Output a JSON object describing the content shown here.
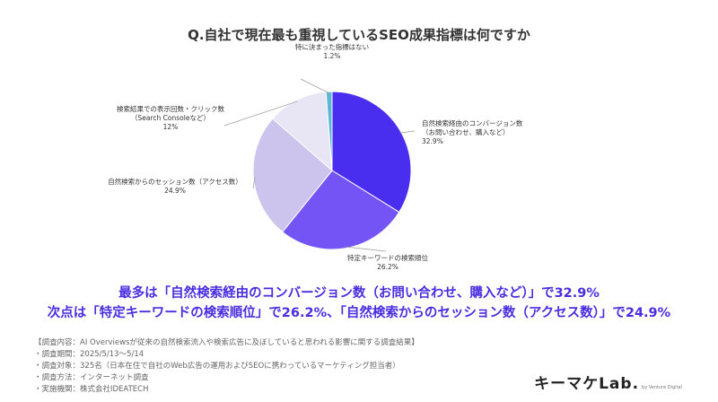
{
  "chart_data": {
    "type": "pie",
    "title": "Q.自社で現在最も重視しているSEO成果指標は何ですか",
    "slices": [
      {
        "label_lines": [
          "自然検索経由のコンバージョン数",
          "（お問い合わせ、購入など）"
        ],
        "value": 32.9,
        "value_label": "32.9%",
        "color": "#4a2ef0"
      },
      {
        "label_lines": [
          "特定キーワードの検索順位"
        ],
        "value": 26.2,
        "value_label": "26.2%",
        "color": "#7554f5"
      },
      {
        "label_lines": [
          "自然検索からのセッション数（アクセス数）"
        ],
        "value": 24.9,
        "value_label": "24.9%",
        "color": "#cdc4ee"
      },
      {
        "label_lines": [
          "検索結果での表示回数・クリック数",
          "（Search Consoleなど）"
        ],
        "value": 12,
        "value_label": "12%",
        "color": "#e8e6f5"
      },
      {
        "label_lines": [
          "特に決まった指標はない"
        ],
        "value": 1.2,
        "value_label": "1.2%",
        "color": "#5fb5d8"
      }
    ]
  },
  "headline": {
    "line1": "最多は「自然検索経由のコンバージョン数（お問い合わせ、購入など）」で32.9%",
    "line2": "次点は「特定キーワードの検索順位」で26.2%、「自然検索からのセッション数（アクセス数）」で24.9%"
  },
  "survey": [
    "【調査内容：AI Overviewsが従来の自然検索流入や検索広告に及ぼしていると思われる影響に関する調査結果】",
    "・調査期間：2025/5/13〜5/14",
    "・調査対象：325名（日本在住で自社のWeb広告の運用およびSEOに携わっているマーケティング担当者）",
    "・調査方法：インターネット調査",
    "・実施機関：株式会社IDEATECH"
  ],
  "brand": {
    "name": "キーマケLab.",
    "by": "by Venture Digital"
  }
}
